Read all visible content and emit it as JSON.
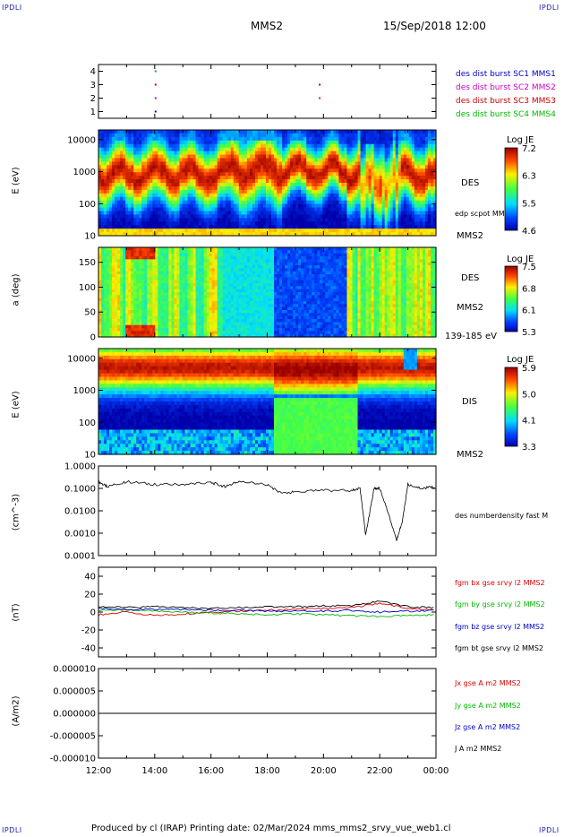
{
  "corner_tags": {
    "tl": "IPDLI",
    "tr": "IPDLI",
    "bl": "IPDLI",
    "br": "IPDLI"
  },
  "header": {
    "spacecraft": "MMS2",
    "datetime": "15/Sep/2018 12:00"
  },
  "footer": {
    "text": "Produced by cl (IRAP)   Printing date: 02/Mar/2024   mms_mms2_srvy_vue_web1.cl"
  },
  "time_axis": {
    "ticks": [
      "12:00",
      "14:00",
      "16:00",
      "18:00",
      "20:00",
      "22:00",
      "00:00"
    ]
  },
  "panel_burst": {
    "yticks": [
      "4",
      "3",
      "2",
      "1"
    ],
    "legend": [
      {
        "text": "des dist burst SC1 MMS1",
        "color": "#0000cc"
      },
      {
        "text": "des dist burst SC2 MMS2",
        "color": "#cc00cc"
      },
      {
        "text": "des dist burst SC3 MMS3",
        "color": "#cc0000"
      },
      {
        "text": "des dist burst SC4 MMS4",
        "color": "#00bb00"
      }
    ]
  },
  "panel_des_energy": {
    "ylabel": "E (eV)",
    "yticks": [
      "10000",
      "1000",
      "100",
      "10"
    ],
    "label": "DES",
    "sublabel": "edp scpot MMS2",
    "bottom_label": "MMS2",
    "colorbar": {
      "title": "Log JE",
      "ticks": [
        "7.2",
        "6.3",
        "5.5",
        "4.6"
      ]
    }
  },
  "panel_des_pitch": {
    "ylabel": "a (deg)",
    "yticks": [
      "150",
      "100",
      "50",
      "0"
    ],
    "label": "DES",
    "sublabel": "MMS2",
    "bottom_label": "139-185 eV",
    "colorbar": {
      "title": "Log JE",
      "ticks": [
        "7.5",
        "6.8",
        "6.1",
        "5.3"
      ]
    }
  },
  "panel_dis_energy": {
    "ylabel": "E (eV)",
    "yticks": [
      "10000",
      "1000",
      "100",
      "10"
    ],
    "label": "DIS",
    "bottom_label": "MMS2",
    "colorbar": {
      "title": "Log JE",
      "ticks": [
        "5.9",
        "5.0",
        "4.1",
        "3.3"
      ]
    }
  },
  "panel_density": {
    "ylabel": "(cm^-3)",
    "yticks": [
      "1.0000",
      "0.1000",
      "0.0100",
      "0.0010",
      "0.0001"
    ],
    "label": "des numberdensity fast M"
  },
  "panel_fgm": {
    "ylabel": "(nT)",
    "yticks": [
      "40",
      "20",
      "0",
      "-20",
      "-40"
    ],
    "legend": [
      {
        "text": "fgm bx gse srvy l2 MMS2",
        "color": "#dd0000"
      },
      {
        "text": "fgm by gse srvy l2 MMS2",
        "color": "#00bb00"
      },
      {
        "text": "fgm bz gse srvy l2 MMS2",
        "color": "#0000cc"
      },
      {
        "text": "fgm bt gse srvy l2 MMS2",
        "color": "#000000"
      }
    ]
  },
  "panel_current": {
    "ylabel": "(A/m2)",
    "yticks": [
      "0.000010",
      "0.000005",
      "0.000000",
      "-0.000005",
      "-0.000010"
    ],
    "legend": [
      {
        "text": "Jx gse A m2 MMS2",
        "color": "#dd0000"
      },
      {
        "text": "Jy gse A m2 MMS2",
        "color": "#00bb00"
      },
      {
        "text": "Jz gse A m2 MMS2",
        "color": "#0000cc"
      },
      {
        "text": "J A m2 MMS2",
        "color": "#000000"
      }
    ]
  },
  "chart_data": [
    {
      "type": "scatter",
      "name": "burst intervals",
      "x_range": [
        "12:00",
        "00:00"
      ],
      "y_range": [
        1,
        4
      ],
      "points": [
        {
          "sc": 4,
          "t": "14:00"
        },
        {
          "sc": 3,
          "t": "14:00"
        },
        {
          "sc": 3,
          "t": "19:50"
        },
        {
          "sc": 2,
          "t": "14:00"
        },
        {
          "sc": 2,
          "t": "19:50"
        },
        {
          "sc": 1,
          "t": "14:00"
        }
      ]
    },
    {
      "type": "heatmap",
      "name": "DES energy spectrogram",
      "y_scale": "log",
      "ylim": [
        10,
        20000
      ]
    },
    {
      "type": "heatmap",
      "name": "DES pitch angle",
      "ylim": [
        0,
        180
      ]
    },
    {
      "type": "heatmap",
      "name": "DIS energy spectrogram",
      "y_scale": "log",
      "ylim": [
        10,
        20000
      ]
    },
    {
      "type": "line",
      "name": "number density",
      "y_scale": "log",
      "ylim": [
        0.0001,
        1
      ],
      "x_hours": [
        12,
        12.3,
        13,
        14,
        15,
        16,
        16.5,
        17,
        18,
        18.5,
        19,
        20,
        21,
        21.3,
        21.5,
        21.8,
        22,
        22.3,
        22.6,
        22.8,
        23,
        23.5,
        24
      ],
      "values": [
        0.2,
        0.12,
        0.2,
        0.15,
        0.15,
        0.18,
        0.12,
        0.2,
        0.15,
        0.06,
        0.07,
        0.08,
        0.08,
        0.1,
        0.0008,
        0.1,
        0.1,
        0.008,
        0.0005,
        0.003,
        0.15,
        0.1,
        0.12
      ]
    },
    {
      "type": "line",
      "name": "fgm b gse",
      "ylim": [
        -50,
        50
      ],
      "x_hours": [
        12,
        13,
        14,
        15,
        16,
        17,
        18,
        19,
        20,
        21,
        22,
        23,
        24
      ],
      "series": [
        {
          "name": "fgm bx gse srvy l2 MMS2",
          "values": [
            -3,
            0,
            -4,
            -2,
            0,
            1,
            2,
            3,
            4,
            5,
            10,
            4,
            2
          ]
        },
        {
          "name": "fgm by gse srvy l2 MMS2",
          "values": [
            2,
            2,
            1,
            0,
            -1,
            -2,
            -3,
            -2,
            -3,
            -4,
            -5,
            -4,
            -3
          ]
        },
        {
          "name": "fgm bz gse srvy l2 MMS2",
          "values": [
            4,
            3,
            3,
            3,
            2,
            2,
            1,
            1,
            1,
            2,
            0,
            1,
            2
          ]
        },
        {
          "name": "fgm bt gse srvy l2 MMS2",
          "values": [
            6,
            5,
            6,
            5,
            4,
            5,
            6,
            6,
            7,
            7,
            12,
            6,
            5
          ]
        }
      ]
    },
    {
      "type": "line",
      "name": "current density",
      "ylim": [
        -1e-05,
        1e-05
      ],
      "x_hours": [
        12,
        24
      ],
      "values": [
        0,
        0
      ]
    }
  ]
}
